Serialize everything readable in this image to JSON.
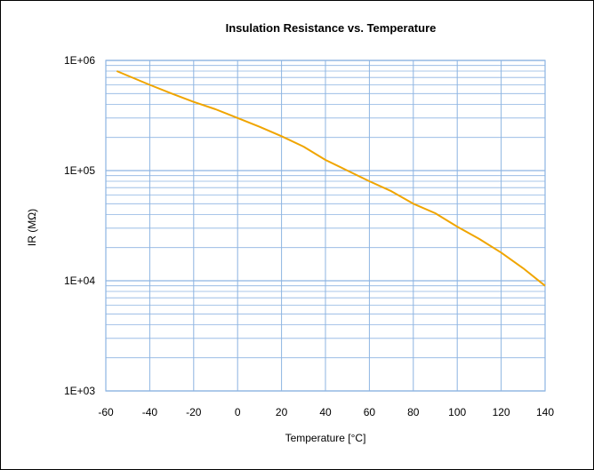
{
  "chart_data": {
    "type": "line",
    "title": "Insulation Resistance vs. Temperature",
    "xlabel": "Temperature [°C]",
    "ylabel": "IR (MΩ)",
    "xlim": [
      -60,
      140
    ],
    "ylim": [
      1000,
      1000000
    ],
    "yscale": "log",
    "grid": true,
    "x_ticks": [
      -60,
      -40,
      -20,
      0,
      20,
      40,
      60,
      80,
      100,
      120,
      140
    ],
    "x_tick_labels": [
      "-60",
      "-40",
      "-20",
      "0",
      "20",
      "40",
      "60",
      "80",
      "100",
      "120",
      "140"
    ],
    "y_ticks": [
      1000,
      10000,
      100000,
      1000000
    ],
    "y_tick_labels": [
      "1E+03",
      "1E+04",
      "1E+05",
      "1E+06"
    ],
    "series": [
      {
        "color": "#f0a500",
        "x": [
          -55,
          -40,
          -30,
          -20,
          -10,
          0,
          10,
          20,
          30,
          40,
          50,
          60,
          70,
          80,
          90,
          100,
          110,
          120,
          130,
          140
        ],
        "y": [
          800000,
          600000,
          500000,
          420000,
          360000,
          300000,
          250000,
          205000,
          165000,
          125000,
          100000,
          80000,
          65000,
          50000,
          41000,
          31000,
          24000,
          18000,
          13000,
          9000
        ]
      }
    ]
  },
  "colors": {
    "grid": "#8db4e2",
    "axis": "#8db4e2",
    "line": "#f0a500"
  }
}
